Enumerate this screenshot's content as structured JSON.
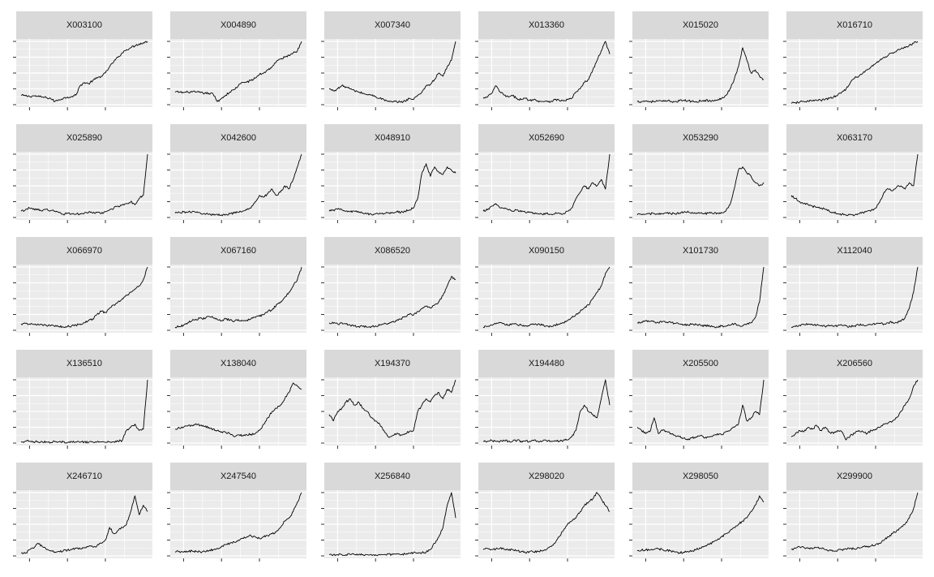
{
  "chart_data": {
    "type": "line",
    "facet_layout": "6 columns x 5 rows",
    "x_axis": {
      "tick_labels_shown": false,
      "tick_count": 3
    },
    "y_axis": {
      "tick_labels_shown": false,
      "tick_count": 5
    },
    "grid": true,
    "panel_background": "#ebebeb",
    "strip_background": "#d9d9d9",
    "line_color": "#000000",
    "x": [
      0,
      1,
      2,
      3,
      4,
      5,
      6,
      7,
      8,
      9,
      10,
      11,
      12,
      13,
      14,
      15,
      16,
      17,
      18,
      19,
      20,
      21,
      22,
      23,
      24,
      25,
      26,
      27,
      28,
      29,
      30
    ],
    "panels": [
      {
        "title": "X003100",
        "values": [
          0.15,
          0.14,
          0.13,
          0.14,
          0.13,
          0.12,
          0.11,
          0.1,
          0.05,
          0.08,
          0.1,
          0.12,
          0.13,
          0.15,
          0.3,
          0.35,
          0.33,
          0.38,
          0.42,
          0.45,
          0.5,
          0.6,
          0.68,
          0.75,
          0.82,
          0.87,
          0.9,
          0.93,
          0.96,
          0.98,
          1.0
        ]
      },
      {
        "title": "X004890",
        "values": [
          0.2,
          0.2,
          0.19,
          0.2,
          0.2,
          0.2,
          0.19,
          0.18,
          0.18,
          0.17,
          0.05,
          0.1,
          0.15,
          0.2,
          0.24,
          0.3,
          0.35,
          0.36,
          0.38,
          0.42,
          0.48,
          0.5,
          0.55,
          0.6,
          0.68,
          0.72,
          0.75,
          0.78,
          0.82,
          0.85,
          1.0
        ]
      },
      {
        "title": "X007340",
        "values": [
          0.25,
          0.22,
          0.25,
          0.3,
          0.28,
          0.25,
          0.22,
          0.2,
          0.18,
          0.16,
          0.15,
          0.13,
          0.1,
          0.08,
          0.05,
          0.04,
          0.05,
          0.04,
          0.06,
          0.1,
          0.08,
          0.15,
          0.2,
          0.3,
          0.32,
          0.4,
          0.5,
          0.45,
          0.6,
          0.7,
          1.0
        ]
      },
      {
        "title": "X013360",
        "values": [
          0.1,
          0.12,
          0.18,
          0.3,
          0.2,
          0.15,
          0.12,
          0.14,
          0.1,
          0.08,
          0.1,
          0.07,
          0.08,
          0.06,
          0.05,
          0.06,
          0.05,
          0.08,
          0.07,
          0.06,
          0.08,
          0.1,
          0.2,
          0.25,
          0.35,
          0.4,
          0.55,
          0.7,
          0.85,
          1.0,
          0.8
        ]
      },
      {
        "title": "X015020",
        "values": [
          0.05,
          0.05,
          0.06,
          0.05,
          0.05,
          0.06,
          0.05,
          0.06,
          0.05,
          0.05,
          0.06,
          0.07,
          0.06,
          0.05,
          0.05,
          0.06,
          0.07,
          0.06,
          0.06,
          0.07,
          0.1,
          0.15,
          0.25,
          0.4,
          0.6,
          0.9,
          0.7,
          0.5,
          0.55,
          0.45,
          0.4
        ]
      },
      {
        "title": "X016710",
        "values": [
          0.02,
          0.03,
          0.04,
          0.05,
          0.06,
          0.06,
          0.07,
          0.07,
          0.08,
          0.1,
          0.12,
          0.15,
          0.2,
          0.25,
          0.35,
          0.42,
          0.45,
          0.5,
          0.55,
          0.6,
          0.65,
          0.7,
          0.75,
          0.78,
          0.82,
          0.85,
          0.88,
          0.9,
          0.94,
          0.97,
          1.0
        ]
      },
      {
        "title": "X025890",
        "values": [
          0.1,
          0.12,
          0.15,
          0.14,
          0.12,
          0.1,
          0.13,
          0.11,
          0.1,
          0.08,
          0.05,
          0.07,
          0.06,
          0.05,
          0.06,
          0.07,
          0.08,
          0.07,
          0.08,
          0.06,
          0.09,
          0.12,
          0.15,
          0.18,
          0.2,
          0.22,
          0.25,
          0.2,
          0.3,
          0.35,
          1.0
        ]
      },
      {
        "title": "X042600",
        "values": [
          0.07,
          0.08,
          0.09,
          0.08,
          0.09,
          0.08,
          0.07,
          0.06,
          0.05,
          0.04,
          0.05,
          0.04,
          0.05,
          0.06,
          0.07,
          0.08,
          0.1,
          0.12,
          0.15,
          0.25,
          0.35,
          0.32,
          0.38,
          0.45,
          0.35,
          0.4,
          0.5,
          0.45,
          0.6,
          0.8,
          1.0
        ]
      },
      {
        "title": "X048910",
        "values": [
          0.1,
          0.12,
          0.13,
          0.12,
          0.1,
          0.09,
          0.1,
          0.08,
          0.07,
          0.06,
          0.05,
          0.06,
          0.07,
          0.06,
          0.07,
          0.08,
          0.09,
          0.08,
          0.1,
          0.12,
          0.15,
          0.3,
          0.7,
          0.85,
          0.65,
          0.8,
          0.72,
          0.68,
          0.8,
          0.75,
          0.7
        ]
      },
      {
        "title": "X052690",
        "values": [
          0.1,
          0.12,
          0.18,
          0.22,
          0.15,
          0.14,
          0.12,
          0.1,
          0.12,
          0.09,
          0.08,
          0.09,
          0.07,
          0.06,
          0.05,
          0.06,
          0.05,
          0.06,
          0.07,
          0.06,
          0.1,
          0.15,
          0.3,
          0.4,
          0.5,
          0.45,
          0.55,
          0.5,
          0.6,
          0.45,
          1.0
        ]
      },
      {
        "title": "X053290",
        "values": [
          0.04,
          0.05,
          0.05,
          0.06,
          0.06,
          0.05,
          0.06,
          0.07,
          0.06,
          0.06,
          0.07,
          0.08,
          0.1,
          0.08,
          0.06,
          0.07,
          0.06,
          0.07,
          0.06,
          0.07,
          0.08,
          0.1,
          0.2,
          0.45,
          0.75,
          0.8,
          0.7,
          0.65,
          0.55,
          0.5,
          0.55
        ]
      },
      {
        "title": "X063170",
        "values": [
          0.35,
          0.3,
          0.25,
          0.22,
          0.2,
          0.18,
          0.16,
          0.15,
          0.13,
          0.1,
          0.08,
          0.06,
          0.05,
          0.04,
          0.05,
          0.04,
          0.06,
          0.08,
          0.1,
          0.12,
          0.15,
          0.25,
          0.4,
          0.45,
          0.42,
          0.48,
          0.5,
          0.45,
          0.55,
          0.5,
          1.0
        ]
      },
      {
        "title": "X066970",
        "values": [
          0.1,
          0.11,
          0.1,
          0.09,
          0.1,
          0.09,
          0.08,
          0.07,
          0.06,
          0.06,
          0.05,
          0.06,
          0.07,
          0.08,
          0.1,
          0.12,
          0.15,
          0.18,
          0.25,
          0.3,
          0.28,
          0.35,
          0.4,
          0.45,
          0.5,
          0.55,
          0.6,
          0.65,
          0.7,
          0.8,
          1.0
        ]
      },
      {
        "title": "X067160",
        "values": [
          0.05,
          0.06,
          0.08,
          0.12,
          0.15,
          0.17,
          0.2,
          0.18,
          0.22,
          0.2,
          0.17,
          0.15,
          0.18,
          0.16,
          0.14,
          0.17,
          0.15,
          0.16,
          0.18,
          0.2,
          0.22,
          0.25,
          0.3,
          0.32,
          0.4,
          0.45,
          0.52,
          0.6,
          0.7,
          0.8,
          1.0
        ]
      },
      {
        "title": "X086520",
        "values": [
          0.12,
          0.11,
          0.1,
          0.12,
          0.1,
          0.08,
          0.07,
          0.06,
          0.06,
          0.05,
          0.06,
          0.07,
          0.08,
          0.1,
          0.11,
          0.13,
          0.15,
          0.18,
          0.22,
          0.25,
          0.24,
          0.3,
          0.34,
          0.38,
          0.35,
          0.4,
          0.45,
          0.55,
          0.7,
          0.85,
          0.8
        ]
      },
      {
        "title": "X090150",
        "values": [
          0.05,
          0.06,
          0.08,
          0.1,
          0.12,
          0.1,
          0.08,
          0.1,
          0.09,
          0.08,
          0.07,
          0.08,
          0.09,
          0.1,
          0.08,
          0.07,
          0.06,
          0.08,
          0.1,
          0.12,
          0.15,
          0.2,
          0.25,
          0.3,
          0.35,
          0.4,
          0.5,
          0.6,
          0.7,
          0.9,
          1.0
        ]
      },
      {
        "title": "X101730",
        "values": [
          0.12,
          0.13,
          0.15,
          0.14,
          0.13,
          0.12,
          0.14,
          0.13,
          0.12,
          0.11,
          0.1,
          0.09,
          0.08,
          0.1,
          0.09,
          0.08,
          0.07,
          0.08,
          0.06,
          0.05,
          0.07,
          0.06,
          0.08,
          0.1,
          0.08,
          0.07,
          0.1,
          0.12,
          0.2,
          0.45,
          1.0
        ]
      },
      {
        "title": "X112040",
        "values": [
          0.05,
          0.06,
          0.08,
          0.09,
          0.1,
          0.09,
          0.08,
          0.07,
          0.06,
          0.07,
          0.06,
          0.07,
          0.08,
          0.07,
          0.06,
          0.07,
          0.08,
          0.09,
          0.08,
          0.09,
          0.1,
          0.11,
          0.1,
          0.12,
          0.13,
          0.12,
          0.14,
          0.2,
          0.35,
          0.6,
          1.0
        ]
      },
      {
        "title": "X136510",
        "values": [
          0.02,
          0.03,
          0.03,
          0.02,
          0.02,
          0.02,
          0.02,
          0.01,
          0.02,
          0.02,
          0.02,
          0.01,
          0.02,
          0.02,
          0.01,
          0.02,
          0.01,
          0.02,
          0.02,
          0.02,
          0.01,
          0.02,
          0.02,
          0.03,
          0.04,
          0.2,
          0.25,
          0.3,
          0.2,
          0.22,
          1.0
        ]
      },
      {
        "title": "X138040",
        "values": [
          0.22,
          0.24,
          0.25,
          0.27,
          0.28,
          0.3,
          0.28,
          0.26,
          0.25,
          0.22,
          0.2,
          0.18,
          0.17,
          0.15,
          0.1,
          0.13,
          0.12,
          0.13,
          0.14,
          0.15,
          0.2,
          0.3,
          0.4,
          0.5,
          0.55,
          0.6,
          0.7,
          0.8,
          0.95,
          0.9,
          0.85
        ]
      },
      {
        "title": "X194370",
        "values": [
          0.45,
          0.35,
          0.5,
          0.55,
          0.65,
          0.7,
          0.6,
          0.65,
          0.55,
          0.5,
          0.4,
          0.35,
          0.3,
          0.2,
          0.1,
          0.12,
          0.15,
          0.13,
          0.15,
          0.18,
          0.2,
          0.5,
          0.6,
          0.7,
          0.65,
          0.75,
          0.8,
          0.7,
          0.85,
          0.8,
          1.0
        ]
      },
      {
        "title": "X194480",
        "values": [
          0.03,
          0.03,
          0.04,
          0.03,
          0.03,
          0.04,
          0.03,
          0.03,
          0.04,
          0.03,
          0.03,
          0.03,
          0.04,
          0.03,
          0.03,
          0.04,
          0.03,
          0.04,
          0.03,
          0.04,
          0.05,
          0.1,
          0.2,
          0.5,
          0.6,
          0.5,
          0.45,
          0.4,
          0.7,
          1.0,
          0.6
        ]
      },
      {
        "title": "X205500",
        "values": [
          0.25,
          0.2,
          0.15,
          0.18,
          0.4,
          0.15,
          0.2,
          0.18,
          0.15,
          0.12,
          0.1,
          0.08,
          0.05,
          0.08,
          0.1,
          0.12,
          0.08,
          0.1,
          0.12,
          0.15,
          0.13,
          0.18,
          0.2,
          0.25,
          0.3,
          0.6,
          0.35,
          0.4,
          0.5,
          0.45,
          1.0
        ]
      },
      {
        "title": "X206560",
        "values": [
          0.1,
          0.15,
          0.2,
          0.18,
          0.25,
          0.22,
          0.28,
          0.2,
          0.25,
          0.18,
          0.15,
          0.2,
          0.18,
          0.05,
          0.12,
          0.15,
          0.2,
          0.18,
          0.15,
          0.2,
          0.22,
          0.25,
          0.3,
          0.32,
          0.35,
          0.4,
          0.5,
          0.6,
          0.7,
          0.9,
          1.0
        ]
      },
      {
        "title": "X246710",
        "values": [
          0.05,
          0.04,
          0.1,
          0.12,
          0.2,
          0.15,
          0.1,
          0.08,
          0.06,
          0.07,
          0.08,
          0.09,
          0.1,
          0.12,
          0.11,
          0.13,
          0.15,
          0.14,
          0.16,
          0.2,
          0.25,
          0.45,
          0.35,
          0.4,
          0.45,
          0.5,
          0.7,
          0.95,
          0.65,
          0.8,
          0.7
        ]
      },
      {
        "title": "X247540",
        "values": [
          0.06,
          0.07,
          0.06,
          0.07,
          0.08,
          0.07,
          0.06,
          0.07,
          0.08,
          0.1,
          0.12,
          0.15,
          0.18,
          0.2,
          0.22,
          0.25,
          0.28,
          0.3,
          0.32,
          0.3,
          0.28,
          0.3,
          0.32,
          0.35,
          0.38,
          0.45,
          0.55,
          0.6,
          0.7,
          0.85,
          1.0
        ]
      },
      {
        "title": "X256840",
        "values": [
          0.02,
          0.02,
          0.02,
          0.02,
          0.02,
          0.02,
          0.02,
          0.02,
          0.02,
          0.02,
          0.02,
          0.02,
          0.02,
          0.02,
          0.03,
          0.02,
          0.03,
          0.02,
          0.03,
          0.04,
          0.05,
          0.04,
          0.05,
          0.06,
          0.1,
          0.2,
          0.3,
          0.45,
          0.8,
          1.0,
          0.6
        ]
      },
      {
        "title": "X298020",
        "values": [
          0.1,
          0.12,
          0.1,
          0.11,
          0.12,
          0.1,
          0.09,
          0.1,
          0.08,
          0.07,
          0.05,
          0.07,
          0.06,
          0.07,
          0.08,
          0.1,
          0.15,
          0.2,
          0.3,
          0.4,
          0.5,
          0.55,
          0.6,
          0.7,
          0.8,
          0.85,
          0.9,
          1.0,
          0.9,
          0.8,
          0.7
        ]
      },
      {
        "title": "X298050",
        "values": [
          0.08,
          0.09,
          0.1,
          0.09,
          0.1,
          0.11,
          0.1,
          0.09,
          0.08,
          0.06,
          0.05,
          0.06,
          0.07,
          0.08,
          0.1,
          0.12,
          0.15,
          0.18,
          0.22,
          0.25,
          0.3,
          0.35,
          0.4,
          0.45,
          0.5,
          0.55,
          0.6,
          0.7,
          0.8,
          0.95,
          0.85
        ]
      },
      {
        "title": "X299900",
        "values": [
          0.1,
          0.12,
          0.14,
          0.13,
          0.12,
          0.11,
          0.13,
          0.12,
          0.1,
          0.09,
          0.08,
          0.09,
          0.1,
          0.11,
          0.12,
          0.11,
          0.13,
          0.15,
          0.14,
          0.16,
          0.18,
          0.2,
          0.25,
          0.3,
          0.35,
          0.4,
          0.45,
          0.5,
          0.6,
          0.75,
          1.0
        ]
      }
    ]
  }
}
